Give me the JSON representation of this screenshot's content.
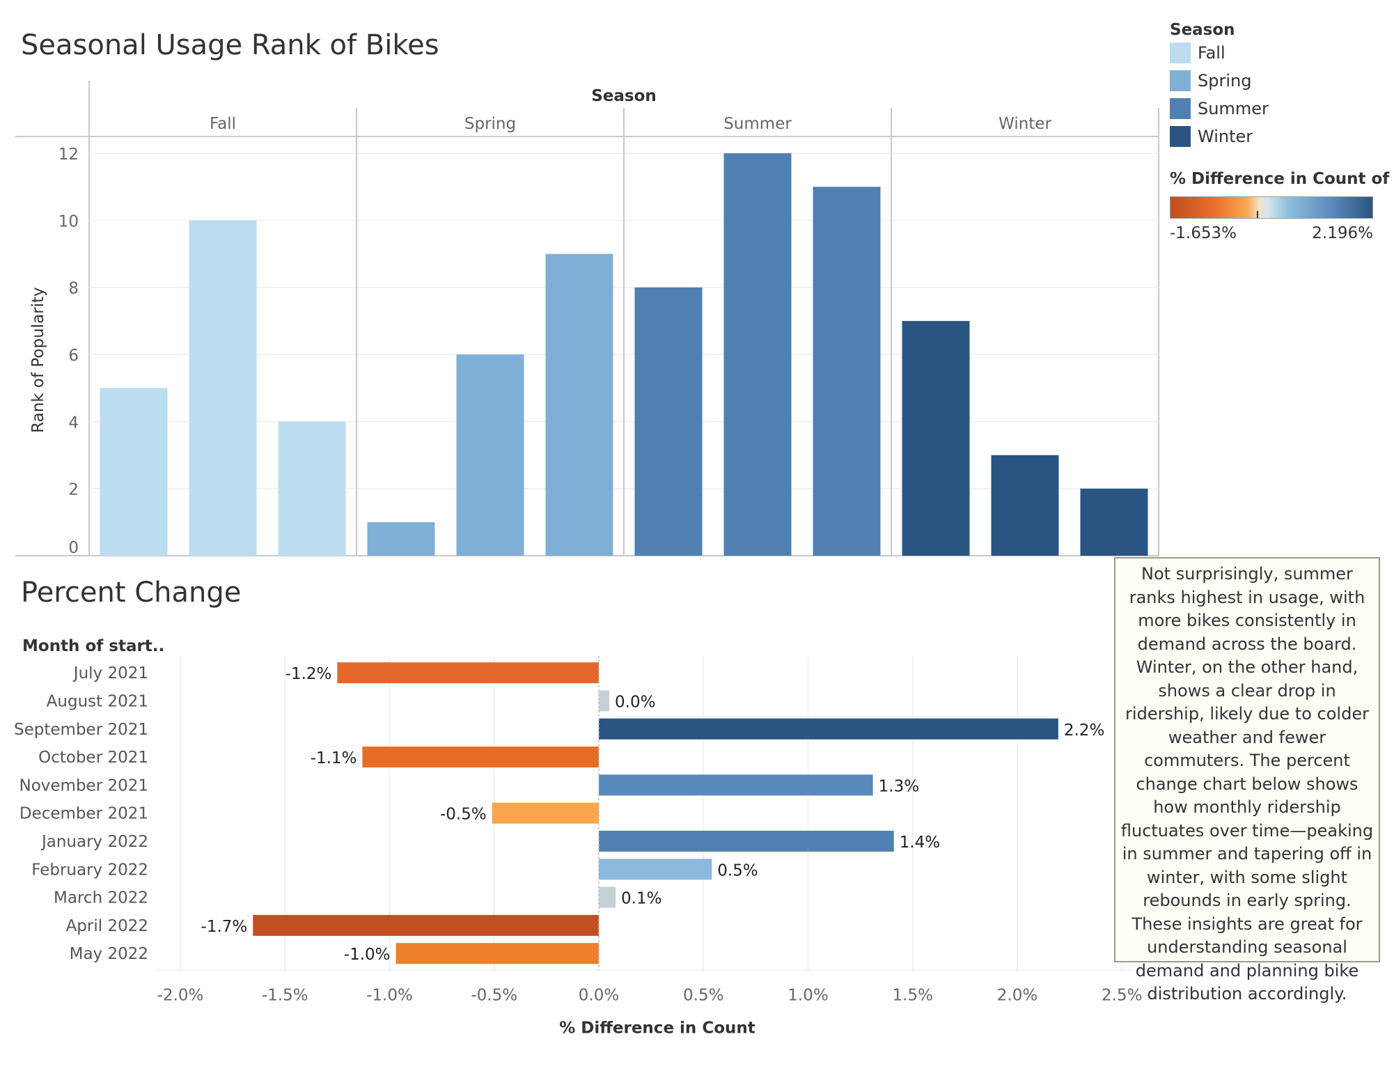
{
  "rank_chart": {
    "title": "Seasonal Usage Rank of Bikes",
    "column_header": "Season",
    "ylabel": "Rank of Popularity",
    "y_ticks": [
      0,
      2,
      4,
      6,
      8,
      10,
      12
    ]
  },
  "legend": {
    "title": "Season",
    "items": [
      {
        "label": "Fall",
        "color": "#bcdcf0"
      },
      {
        "label": "Spring",
        "color": "#7fafd6"
      },
      {
        "label": "Summer",
        "color": "#4f80b1"
      },
      {
        "label": "Winter",
        "color": "#2a5583"
      }
    ]
  },
  "color_legend": {
    "title": "% Difference in Count of ..",
    "min_label": "-1.653%",
    "max_label": "2.196%"
  },
  "pc_chart": {
    "title": "Percent Change",
    "row_header": "Month of start..",
    "xlabel": "% Difference in Count",
    "x_ticks": [
      "-2.0%",
      "-1.5%",
      "-1.0%",
      "-0.5%",
      "0.0%",
      "0.5%",
      "1.0%",
      "1.5%",
      "2.0%",
      "2.5%"
    ]
  },
  "note": "Not surprisingly, summer ranks highest in usage, with more bikes consistently in demand across the board. Winter, on the other hand, shows a clear drop in ridership, likely due to colder weather and fewer commuters. The percent change chart below shows how monthly ridership fluctuates over time—peaking in summer and tapering off in winter, with some slight rebounds in early spring. These insights are great for understanding seasonal demand and planning bike distribution accordingly.",
  "chart_data": [
    {
      "type": "bar",
      "title": "Seasonal Usage Rank of Bikes",
      "xlabel": "Season",
      "ylabel": "Rank of Popularity",
      "ylim": [
        0,
        12.5
      ],
      "grid": true,
      "groups": [
        {
          "season": "Fall",
          "color": "#bcdcf0",
          "values": [
            5,
            10,
            4
          ]
        },
        {
          "season": "Spring",
          "color": "#7fafd6",
          "values": [
            1,
            6,
            9
          ]
        },
        {
          "season": "Summer",
          "color": "#4f80b1",
          "values": [
            8,
            12,
            11
          ]
        },
        {
          "season": "Winter",
          "color": "#2a5583",
          "values": [
            7,
            3,
            2
          ]
        }
      ]
    },
    {
      "type": "bar",
      "orientation": "horizontal",
      "title": "Percent Change",
      "xlabel": "% Difference in Count",
      "ylabel": "Month of start..",
      "xlim": [
        -2.0,
        2.5
      ],
      "grid": true,
      "categories": [
        "July 2021",
        "August 2021",
        "September 2021",
        "October 2021",
        "November 2021",
        "December 2021",
        "January 2022",
        "February 2022",
        "March 2022",
        "April 2022",
        "May 2022"
      ],
      "values": [
        -1.25,
        0.05,
        2.196,
        -1.13,
        1.31,
        -0.51,
        1.41,
        0.54,
        0.08,
        -1.653,
        -0.97
      ],
      "labels": [
        "-1.2%",
        "0.0%",
        "2.2%",
        "-1.1%",
        "1.3%",
        "-0.5%",
        "1.4%",
        "0.5%",
        "0.1%",
        "-1.7%",
        "-1.0%"
      ],
      "colors": [
        "#e5672a",
        "#c8cfd2",
        "#2a5583",
        "#e56d27",
        "#5889bb",
        "#f9a54d",
        "#4f80b1",
        "#8ab9dc",
        "#c3d0d4",
        "#c24e22",
        "#ee7f2d"
      ]
    }
  ]
}
